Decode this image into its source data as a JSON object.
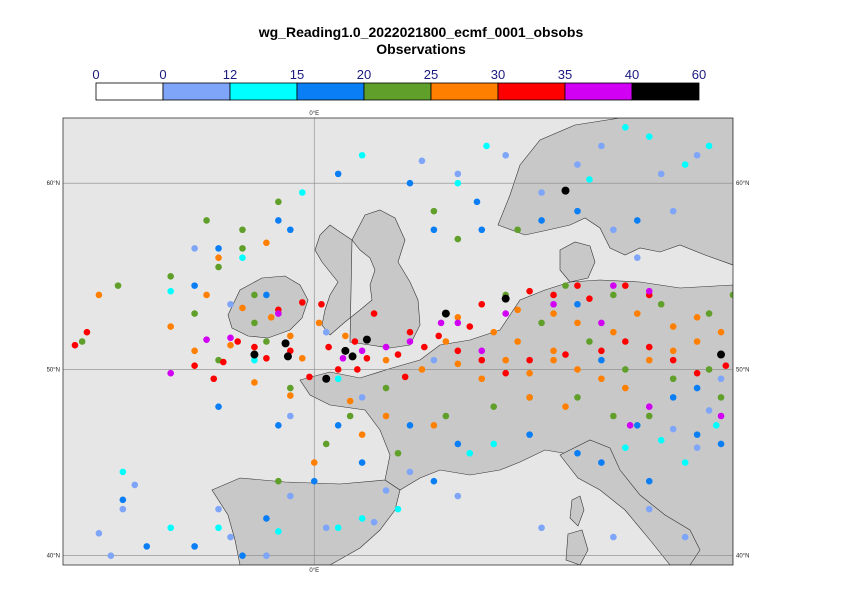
{
  "header": {
    "title": "wg_Reading1.0_2022021800_ecmf_0001_obsobs",
    "subtitle": "Observations"
  },
  "legend": {
    "ticks": [
      "0",
      "0",
      "12",
      "15",
      "20",
      "25",
      "30",
      "35",
      "40",
      "60"
    ],
    "bins": [
      {
        "color": "#ffffff"
      },
      {
        "color": "#7ea5f7"
      },
      {
        "color": "#00ffff"
      },
      {
        "color": "#0a7ef5"
      },
      {
        "color": "#5f9f2a"
      },
      {
        "color": "#ff7f00"
      },
      {
        "color": "#ff0000"
      },
      {
        "color": "#d100f5"
      },
      {
        "color": "#000000"
      }
    ]
  },
  "map": {
    "land_color": "#c8c8c8",
    "sea_color": "#e6e6e6",
    "grid_labels": {
      "lon_top": "0°E",
      "lon_bottom": "0°E",
      "lat_60_left": "60°N",
      "lat_60_right": "60°N",
      "lat_50_left": "50°N",
      "lat_50_right": "50°N",
      "lat_40_left": "40°N",
      "lat_40_right": "40°N"
    }
  },
  "chart_data": {
    "type": "scatter",
    "title": "wg_Reading1.0_2022021800_ecmf_0001_obsobs",
    "subtitle": "Observations",
    "legend_levels": [
      0,
      0,
      12,
      15,
      20,
      25,
      30,
      35,
      40,
      60
    ],
    "lon_range": [
      -10.5,
      17.5
    ],
    "lat_range": [
      39.5,
      63.5
    ],
    "series": [
      {
        "color": "#7ea5f7",
        "points": [
          [
            -6.5,
            39.2
          ],
          [
            -5,
            40.5
          ],
          [
            -3.5,
            41
          ],
          [
            -2,
            40
          ],
          [
            0.5,
            41.5
          ],
          [
            -4,
            42.5
          ],
          [
            -8,
            42.5
          ],
          [
            -8.5,
            40
          ],
          [
            2.5,
            41.8
          ],
          [
            3,
            43.5
          ],
          [
            -1,
            43.2
          ],
          [
            14,
            42.5
          ],
          [
            15.5,
            41
          ],
          [
            12.5,
            41
          ],
          [
            16,
            45.8
          ],
          [
            11,
            61
          ],
          [
            12,
            62
          ],
          [
            14.5,
            60.5
          ],
          [
            16,
            61.5
          ],
          [
            15,
            58.5
          ],
          [
            8,
            61.5
          ],
          [
            6,
            60.5
          ],
          [
            4.5,
            61.2
          ],
          [
            9.5,
            59.5
          ],
          [
            12.5,
            57.5
          ],
          [
            13.5,
            56
          ],
          [
            -5,
            56.5
          ],
          [
            -3.5,
            53.5
          ],
          [
            0.5,
            52
          ],
          [
            5,
            50.5
          ],
          [
            2,
            48.5
          ],
          [
            -1,
            47.5
          ],
          [
            4,
            44.5
          ],
          [
            6,
            43.2
          ],
          [
            9.5,
            41.5
          ],
          [
            -6,
            38.5
          ],
          [
            -2.5,
            39
          ],
          [
            -9,
            41.2
          ],
          [
            -7.5,
            43.8
          ],
          [
            16.5,
            47.8
          ],
          [
            15,
            46.8
          ],
          [
            17,
            49.5
          ]
        ]
      },
      {
        "color": "#00ffff",
        "points": [
          [
            -6,
            41.5
          ],
          [
            -4,
            41.5
          ],
          [
            -1.5,
            41.3
          ],
          [
            2,
            42
          ],
          [
            -8,
            44.5
          ],
          [
            1,
            49.5
          ],
          [
            -2.5,
            50.5
          ],
          [
            6.5,
            45.5
          ],
          [
            7.5,
            46
          ],
          [
            13,
            45.8
          ],
          [
            14.5,
            46.2
          ],
          [
            15.5,
            45
          ],
          [
            16.8,
            47
          ],
          [
            7.2,
            62
          ],
          [
            11.5,
            60.2
          ],
          [
            13,
            63
          ],
          [
            14,
            62.5
          ],
          [
            15.5,
            61
          ],
          [
            16.5,
            62
          ],
          [
            2,
            61.5
          ],
          [
            6,
            60
          ],
          [
            -0.5,
            59.5
          ],
          [
            -6,
            54.2
          ],
          [
            -3,
            56
          ],
          [
            1,
            41.5
          ],
          [
            3.5,
            42.5
          ]
        ]
      },
      {
        "color": "#0a7ef5",
        "points": [
          [
            -7,
            40.5
          ],
          [
            -5,
            40.5
          ],
          [
            -3,
            40
          ],
          [
            -8,
            43
          ],
          [
            -2,
            42
          ],
          [
            1,
            47
          ],
          [
            4,
            47
          ],
          [
            6,
            46
          ],
          [
            9,
            46.5
          ],
          [
            11,
            45.5
          ],
          [
            12,
            45
          ],
          [
            14,
            44
          ],
          [
            16,
            46.5
          ],
          [
            17,
            46
          ],
          [
            13.5,
            47
          ],
          [
            15,
            48.5
          ],
          [
            -4,
            48
          ],
          [
            -1.5,
            47
          ],
          [
            2,
            45
          ],
          [
            5,
            44
          ],
          [
            0,
            44
          ],
          [
            6.8,
            59
          ],
          [
            9.5,
            58
          ],
          [
            11,
            58.5
          ],
          [
            13.5,
            58
          ],
          [
            7,
            57.5
          ],
          [
            5,
            57.5
          ],
          [
            -1,
            57.5
          ],
          [
            1,
            60.5
          ],
          [
            4,
            60
          ],
          [
            -5,
            54.5
          ],
          [
            -4,
            56.5
          ],
          [
            -2,
            54
          ],
          [
            -1.5,
            58
          ],
          [
            16,
            49
          ],
          [
            12,
            50.5
          ],
          [
            11,
            53.5
          ]
        ]
      },
      {
        "color": "#5f9f2a",
        "points": [
          [
            -8.2,
            54.5
          ],
          [
            -9.7,
            51.5
          ],
          [
            -6,
            55
          ],
          [
            -5,
            53
          ],
          [
            -4,
            55.5
          ],
          [
            -3,
            56.5
          ],
          [
            -2.5,
            54
          ],
          [
            -2,
            51.5
          ],
          [
            -1,
            49
          ],
          [
            0.5,
            46
          ],
          [
            3.5,
            45.5
          ],
          [
            5.5,
            47.5
          ],
          [
            7.5,
            48
          ],
          [
            9,
            48.5
          ],
          [
            11,
            48.5
          ],
          [
            12.5,
            47.5
          ],
          [
            14,
            47.5
          ],
          [
            15,
            49.5
          ],
          [
            16.5,
            50
          ],
          [
            17,
            48.5
          ],
          [
            13,
            50
          ],
          [
            11.5,
            51.5
          ],
          [
            9.5,
            52.5
          ],
          [
            8,
            54
          ],
          [
            10.5,
            54.5
          ],
          [
            12.5,
            54
          ],
          [
            14.5,
            53.5
          ],
          [
            16.5,
            53
          ],
          [
            17.5,
            54
          ],
          [
            -4.5,
            58
          ],
          [
            -3,
            57.5
          ],
          [
            -1.5,
            59
          ],
          [
            5,
            58.5
          ],
          [
            6,
            57
          ],
          [
            8.5,
            57.5
          ],
          [
            3,
            49
          ],
          [
            1.5,
            47.5
          ],
          [
            -1.5,
            44
          ],
          [
            -2.5,
            52.5
          ],
          [
            -4,
            50.5
          ]
        ]
      },
      {
        "color": "#ff7f00",
        "points": [
          [
            -9,
            54
          ],
          [
            -4.5,
            54
          ],
          [
            -3,
            53.3
          ],
          [
            -1.8,
            52.8
          ],
          [
            -1,
            51.8
          ],
          [
            0.2,
            52.5
          ],
          [
            1.3,
            51.8
          ],
          [
            -0.5,
            50.6
          ],
          [
            -3.5,
            51.3
          ],
          [
            -5,
            51
          ],
          [
            -6,
            52.3
          ],
          [
            -2.5,
            49.3
          ],
          [
            -1,
            48.6
          ],
          [
            1.5,
            48.3
          ],
          [
            3,
            50.5
          ],
          [
            4.5,
            50
          ],
          [
            6,
            50.3
          ],
          [
            7,
            49.5
          ],
          [
            8,
            50.5
          ],
          [
            9,
            49.8
          ],
          [
            10,
            50.5
          ],
          [
            11,
            50
          ],
          [
            12,
            49.5
          ],
          [
            13,
            49
          ],
          [
            14,
            50.5
          ],
          [
            15,
            51
          ],
          [
            16,
            51.5
          ],
          [
            17,
            52
          ],
          [
            10,
            51
          ],
          [
            8.5,
            51.5
          ],
          [
            7.5,
            52
          ],
          [
            6,
            52.8
          ],
          [
            11,
            52.5
          ],
          [
            12.5,
            52
          ],
          [
            13.5,
            53
          ],
          [
            15,
            52.3
          ],
          [
            16,
            52.8
          ],
          [
            10,
            53
          ],
          [
            8.5,
            53.2
          ],
          [
            5.5,
            51.5
          ],
          [
            9,
            48.5
          ],
          [
            10.5,
            48
          ],
          [
            -4,
            56
          ],
          [
            -2,
            56.8
          ],
          [
            3,
            47.5
          ],
          [
            5,
            47
          ],
          [
            0,
            45
          ],
          [
            2,
            46.5
          ]
        ]
      },
      {
        "color": "#ff0000",
        "points": [
          [
            -10,
            51.3
          ],
          [
            -9.5,
            52
          ],
          [
            -3.2,
            51.5
          ],
          [
            -2.5,
            51.2
          ],
          [
            -2,
            50.6
          ],
          [
            -3.8,
            50.4
          ],
          [
            -5,
            50.2
          ],
          [
            -4.2,
            49.5
          ],
          [
            -1.5,
            53.2
          ],
          [
            -0.5,
            53.6
          ],
          [
            0.3,
            53.5
          ],
          [
            1.7,
            51.5
          ],
          [
            0.6,
            51.2
          ],
          [
            -1,
            51
          ],
          [
            2.2,
            50.6
          ],
          [
            3.5,
            50.8
          ],
          [
            4.6,
            51.2
          ],
          [
            5.2,
            51.8
          ],
          [
            6,
            51
          ],
          [
            7,
            50.5
          ],
          [
            8,
            49.8
          ],
          [
            9,
            50.5
          ],
          [
            10.5,
            50.8
          ],
          [
            12,
            51
          ],
          [
            13,
            51.5
          ],
          [
            14,
            51.2
          ],
          [
            15,
            50.5
          ],
          [
            16,
            49.8
          ],
          [
            17,
            50.8
          ],
          [
            10,
            54
          ],
          [
            11.5,
            53.8
          ],
          [
            13,
            54.5
          ],
          [
            14,
            54
          ],
          [
            11,
            54.5
          ],
          [
            9,
            54.2
          ],
          [
            7,
            53.5
          ],
          [
            6.5,
            52.3
          ],
          [
            4,
            52
          ],
          [
            2.5,
            53
          ],
          [
            1,
            50
          ],
          [
            -0.2,
            49.6
          ],
          [
            1.8,
            50
          ],
          [
            3.8,
            49.6
          ],
          [
            17.2,
            50.2
          ]
        ]
      },
      {
        "color": "#d100f5",
        "points": [
          [
            -3.5,
            51.7
          ],
          [
            -4.5,
            51.6
          ],
          [
            -6,
            49.8
          ],
          [
            -1.5,
            53
          ],
          [
            1.2,
            50.6
          ],
          [
            2,
            51
          ],
          [
            4,
            51.5
          ],
          [
            6,
            52.5
          ],
          [
            8,
            53
          ],
          [
            10,
            53.5
          ],
          [
            12,
            52.5
          ],
          [
            12.5,
            54.5
          ],
          [
            14,
            54.2
          ],
          [
            7,
            51
          ],
          [
            13.2,
            47
          ],
          [
            14,
            48
          ],
          [
            17,
            47.5
          ],
          [
            3,
            51.2
          ],
          [
            5.3,
            52.5
          ]
        ]
      },
      {
        "color": "#000000",
        "points": [
          [
            -1.2,
            51.4
          ],
          [
            -2.5,
            50.8
          ],
          [
            -1.1,
            50.7
          ],
          [
            0.5,
            49.5
          ],
          [
            1.6,
            50.7
          ],
          [
            2.2,
            51.6
          ],
          [
            5.5,
            53
          ],
          [
            8,
            53.8
          ],
          [
            10.5,
            59.6
          ],
          [
            17,
            50.8
          ],
          [
            1.3,
            51
          ]
        ]
      }
    ]
  }
}
